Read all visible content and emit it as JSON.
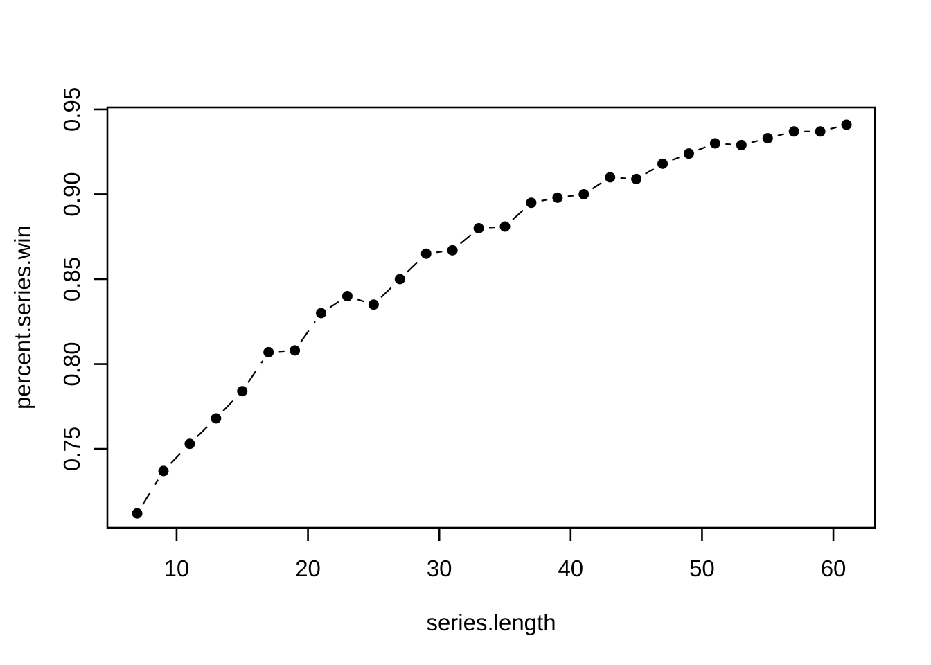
{
  "figure": {
    "background_color": "#FFFFFF",
    "foreground_color": "#000000"
  },
  "chart_data": {
    "type": "scatter",
    "style": "points-with-dashed-line",
    "point_shape": "filled-circle",
    "point_color": "#000000",
    "line_color": "#000000",
    "line_style": "dashed",
    "title": "",
    "xlabel": "series.length",
    "ylabel": "percent.series.win",
    "xlim": [
      4.73,
      63.16
    ],
    "ylim": [
      0.7035,
      0.9512
    ],
    "grid": false,
    "legend": null,
    "x_ticks": [
      {
        "value": 10,
        "label": "10"
      },
      {
        "value": 20,
        "label": "20"
      },
      {
        "value": 30,
        "label": "30"
      },
      {
        "value": 40,
        "label": "40"
      },
      {
        "value": 50,
        "label": "50"
      },
      {
        "value": 60,
        "label": "60"
      }
    ],
    "y_ticks": [
      {
        "value": 0.75,
        "label": "0.75"
      },
      {
        "value": 0.8,
        "label": "0.80"
      },
      {
        "value": 0.85,
        "label": "0.85"
      },
      {
        "value": 0.9,
        "label": "0.90"
      },
      {
        "value": 0.95,
        "label": "0.95"
      }
    ],
    "x": [
      7,
      9,
      11,
      13,
      15,
      17,
      19,
      21,
      23,
      25,
      27,
      29,
      31,
      33,
      35,
      37,
      39,
      41,
      43,
      45,
      47,
      49,
      51,
      53,
      55,
      57,
      59,
      61
    ],
    "y": [
      0.712,
      0.737,
      0.753,
      0.768,
      0.784,
      0.807,
      0.808,
      0.83,
      0.84,
      0.835,
      0.85,
      0.865,
      0.867,
      0.88,
      0.881,
      0.895,
      0.898,
      0.9,
      0.91,
      0.909,
      0.918,
      0.924,
      0.93,
      0.929,
      0.933,
      0.937,
      0.937,
      0.941
    ]
  }
}
